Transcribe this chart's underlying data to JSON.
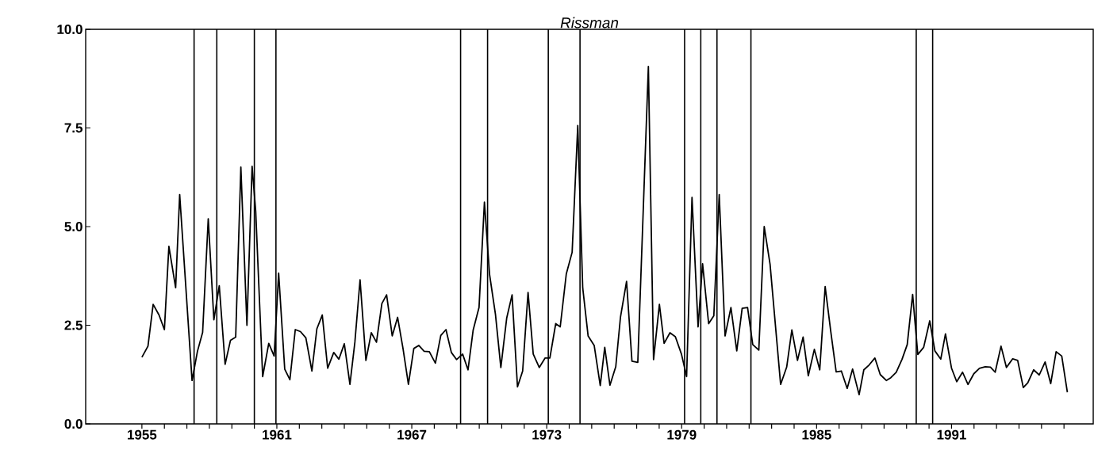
{
  "chart_data": {
    "type": "line",
    "title": "Rissman",
    "xlim": [
      1952.5,
      1997.3
    ],
    "ylim": [
      0,
      10
    ],
    "xticks": [
      {
        "value": 1955,
        "label": "1955"
      },
      {
        "value": 1956,
        "label": null
      },
      {
        "value": 1957,
        "label": null
      },
      {
        "value": 1958,
        "label": null
      },
      {
        "value": 1959,
        "label": null
      },
      {
        "value": 1960,
        "label": null
      },
      {
        "value": 1961,
        "label": "1961"
      },
      {
        "value": 1962,
        "label": null
      },
      {
        "value": 1963,
        "label": null
      },
      {
        "value": 1964,
        "label": null
      },
      {
        "value": 1965,
        "label": null
      },
      {
        "value": 1966,
        "label": null
      },
      {
        "value": 1967,
        "label": "1967"
      },
      {
        "value": 1968,
        "label": null
      },
      {
        "value": 1969,
        "label": null
      },
      {
        "value": 1970,
        "label": null
      },
      {
        "value": 1971,
        "label": null
      },
      {
        "value": 1972,
        "label": null
      },
      {
        "value": 1973,
        "label": "1973"
      },
      {
        "value": 1974,
        "label": null
      },
      {
        "value": 1975,
        "label": null
      },
      {
        "value": 1976,
        "label": null
      },
      {
        "value": 1977,
        "label": null
      },
      {
        "value": 1978,
        "label": null
      },
      {
        "value": 1979,
        "label": "1979"
      },
      {
        "value": 1980,
        "label": null
      },
      {
        "value": 1981,
        "label": null
      },
      {
        "value": 1982,
        "label": null
      },
      {
        "value": 1983,
        "label": null
      },
      {
        "value": 1984,
        "label": null
      },
      {
        "value": 1985,
        "label": "1985"
      },
      {
        "value": 1986,
        "label": null
      },
      {
        "value": 1987,
        "label": null
      },
      {
        "value": 1988,
        "label": null
      },
      {
        "value": 1989,
        "label": null
      },
      {
        "value": 1990,
        "label": null
      },
      {
        "value": 1991,
        "label": "1991"
      },
      {
        "value": 1992,
        "label": null
      },
      {
        "value": 1993,
        "label": null
      },
      {
        "value": 1994,
        "label": null
      },
      {
        "value": 1995,
        "label": null
      },
      {
        "value": 1996,
        "label": null
      }
    ],
    "yticks": [
      {
        "value": 0,
        "label": "0.0"
      },
      {
        "value": 2.5,
        "label": "2.5"
      },
      {
        "value": 5,
        "label": "5.0"
      },
      {
        "value": 7.5,
        "label": "7.5"
      },
      {
        "value": 10,
        "label": "10.0"
      }
    ],
    "marker": "none",
    "line_style": "solid",
    "ref_lines": [
      {
        "axis": "x",
        "value": 1957.32,
        "color": "#000000"
      },
      {
        "axis": "x",
        "value": 1958.33,
        "color": "#000000"
      },
      {
        "axis": "x",
        "value": 1960.0,
        "color": "#000000"
      },
      {
        "axis": "x",
        "value": 1960.96,
        "color": "#000000"
      },
      {
        "axis": "x",
        "value": 1969.17,
        "color": "#000000"
      },
      {
        "axis": "x",
        "value": 1970.37,
        "color": "#000000"
      },
      {
        "axis": "x",
        "value": 1973.07,
        "color": "#000000"
      },
      {
        "axis": "x",
        "value": 1974.48,
        "color": "#000000"
      },
      {
        "axis": "x",
        "value": 1979.13,
        "color": "#000000"
      },
      {
        "axis": "x",
        "value": 1979.85,
        "color": "#000000"
      },
      {
        "axis": "x",
        "value": 1980.57,
        "color": "#000000"
      },
      {
        "axis": "x",
        "value": 1982.08,
        "color": "#000000"
      },
      {
        "axis": "x",
        "value": 1989.43,
        "color": "#000000"
      },
      {
        "axis": "x",
        "value": 1990.16,
        "color": "#000000"
      }
    ],
    "series": [
      {
        "color": "#000000",
        "x": [
          1955.0,
          1955.27,
          1955.5,
          1955.76,
          1956.0,
          1956.2,
          1956.5,
          1956.68,
          1957.23,
          1957.47,
          1957.7,
          1957.95,
          1958.2,
          1958.44,
          1958.7,
          1958.94,
          1959.17,
          1959.4,
          1959.67,
          1959.9,
          1960.06,
          1960.37,
          1960.64,
          1960.88,
          1961.08,
          1961.35,
          1961.58,
          1961.82,
          1962.05,
          1962.29,
          1962.56,
          1962.78,
          1963.02,
          1963.26,
          1963.53,
          1963.76,
          1964.0,
          1964.25,
          1964.47,
          1964.7,
          1964.96,
          1965.2,
          1965.43,
          1965.67,
          1965.88,
          1966.13,
          1966.37,
          1966.61,
          1966.85,
          1967.09,
          1967.31,
          1967.55,
          1967.78,
          1968.05,
          1968.29,
          1968.52,
          1968.76,
          1968.99,
          1969.26,
          1969.5,
          1969.73,
          1969.99,
          1970.23,
          1970.46,
          1970.72,
          1970.96,
          1971.22,
          1971.46,
          1971.7,
          1971.93,
          1972.17,
          1972.4,
          1972.67,
          1972.93,
          1973.14,
          1973.4,
          1973.6,
          1973.87,
          1974.13,
          1974.38,
          1974.6,
          1974.84,
          1975.11,
          1975.38,
          1975.58,
          1975.81,
          1976.07,
          1976.28,
          1976.55,
          1976.79,
          1977.05,
          1977.52,
          1977.75,
          1978.01,
          1978.22,
          1978.48,
          1978.72,
          1978.99,
          1979.22,
          1979.46,
          1979.73,
          1979.93,
          1980.2,
          1980.43,
          1980.67,
          1980.93,
          1981.19,
          1981.45,
          1981.69,
          1981.93,
          1982.16,
          1982.43,
          1982.67,
          1982.93,
          1983.4,
          1983.67,
          1983.9,
          1984.15,
          1984.4,
          1984.63,
          1984.9,
          1985.14,
          1985.38,
          1985.63,
          1985.87,
          1986.1,
          1986.36,
          1986.6,
          1986.89,
          1987.1,
          1987.33,
          1987.59,
          1987.83,
          1988.1,
          1988.3,
          1988.54,
          1988.8,
          1989.03,
          1989.27,
          1989.5,
          1989.76,
          1990.03,
          1990.26,
          1990.52,
          1990.73,
          1991.0,
          1991.23,
          1991.49,
          1991.73,
          1991.99,
          1992.24,
          1992.5,
          1992.73,
          1992.94,
          1993.2,
          1993.44,
          1993.72,
          1993.94,
          1994.19,
          1994.39,
          1994.65,
          1994.9,
          1995.16,
          1995.41,
          1995.65,
          1995.9,
          1996.15
        ],
        "values": [
          1.69,
          1.97,
          3.03,
          2.76,
          2.39,
          4.5,
          3.45,
          5.81,
          1.1,
          1.84,
          2.32,
          5.2,
          2.64,
          3.5,
          1.51,
          2.12,
          2.2,
          6.51,
          2.5,
          6.53,
          5.39,
          1.2,
          2.04,
          1.72,
          3.82,
          1.39,
          1.12,
          2.39,
          2.34,
          2.18,
          1.34,
          2.41,
          2.76,
          1.41,
          1.81,
          1.64,
          2.03,
          1.0,
          2.07,
          3.65,
          1.61,
          2.31,
          2.07,
          3.05,
          3.27,
          2.23,
          2.7,
          1.91,
          1.0,
          1.91,
          1.99,
          1.84,
          1.83,
          1.54,
          2.24,
          2.39,
          1.81,
          1.63,
          1.77,
          1.37,
          2.38,
          2.95,
          5.62,
          3.78,
          2.78,
          1.43,
          2.68,
          3.27,
          0.94,
          1.34,
          3.33,
          1.77,
          1.43,
          1.67,
          1.67,
          2.54,
          2.46,
          3.8,
          4.35,
          7.56,
          3.45,
          2.23,
          1.99,
          0.97,
          1.94,
          0.98,
          1.45,
          2.71,
          3.61,
          1.59,
          1.56,
          9.06,
          1.63,
          3.03,
          2.04,
          2.31,
          2.21,
          1.77,
          1.2,
          5.74,
          2.46,
          4.06,
          2.54,
          2.74,
          5.81,
          2.23,
          2.95,
          1.85,
          2.93,
          2.95,
          2.01,
          1.87,
          5.0,
          4.05,
          1.0,
          1.44,
          2.38,
          1.61,
          2.2,
          1.22,
          1.89,
          1.37,
          3.48,
          2.34,
          1.32,
          1.34,
          0.9,
          1.39,
          0.74,
          1.37,
          1.49,
          1.67,
          1.25,
          1.1,
          1.17,
          1.31,
          1.64,
          2.01,
          3.28,
          1.76,
          1.94,
          2.61,
          1.85,
          1.64,
          2.28,
          1.41,
          1.07,
          1.31,
          1.0,
          1.27,
          1.41,
          1.45,
          1.44,
          1.31,
          1.97,
          1.43,
          1.65,
          1.61,
          0.92,
          1.04,
          1.37,
          1.24,
          1.57,
          1.02,
          1.83,
          1.72,
          0.8
        ]
      }
    ]
  }
}
